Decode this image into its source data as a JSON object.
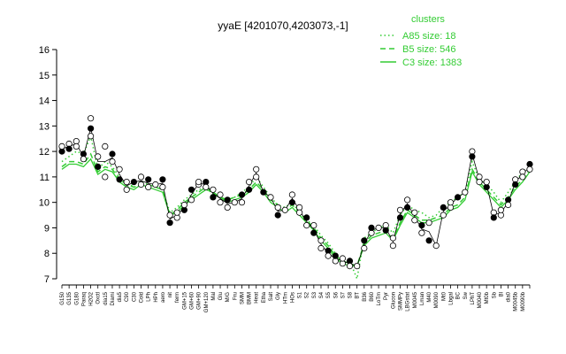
{
  "chart_data": {
    "type": "line",
    "title": "yyaE [4201070,4203073,-1]",
    "xlabel": "",
    "ylabel": "",
    "ylim": [
      7,
      16
    ],
    "yticks": [
      7,
      8,
      9,
      10,
      11,
      12,
      13,
      14,
      15,
      16
    ],
    "categories": [
      "G150",
      "G135",
      "G180",
      "Paraq",
      "H2O2",
      "Oxctl",
      "dia15",
      "Diami",
      "dia5",
      "C90",
      "C30",
      "Cold",
      "LPh",
      "HPh",
      "aero",
      "nit",
      "ferm",
      "GM+15",
      "GM+60",
      "GM+90",
      "GM+120",
      "GM+150",
      "Mal",
      "Glu",
      "M/G",
      "Fru",
      "SMM",
      "BMM",
      "Heat",
      "Etha",
      "Salt",
      "Gly",
      "HTm",
      "HOs",
      "S1",
      "S2",
      "S3",
      "S4",
      "S5",
      "S6",
      "S7",
      "S8",
      "BT",
      "B36",
      "B60",
      "LoTm",
      "Pyr",
      "Glucon",
      "SMMPy",
      "LBGstat",
      "M0045",
      "Lman",
      "M40",
      "M0090",
      "Mt0",
      "Lbgal",
      "BC",
      "Sw",
      "LPhT",
      "M0040",
      "Mt0b",
      "Sb",
      "Bl",
      "dia0",
      "M0045b",
      "M0090b"
    ],
    "visible_labels": [
      "G150",
      "G135",
      "G180",
      "Paraq",
      "H2O2",
      "Oxctl",
      "dia15",
      "Diami",
      "dia5",
      "C90",
      "C30",
      "Cold",
      "LPh",
      "HPh",
      "aero",
      "nit",
      "ferm",
      "GM+15",
      "GM+60",
      "GM+90",
      "GM+120",
      "Mal",
      "Glu",
      "M/G",
      "Fru",
      "SMM",
      "BMM",
      "Heat",
      "Etha",
      "Salt",
      "Gly",
      "HTm",
      "HOs",
      "S1",
      "S2",
      "S3",
      "S4",
      "S5",
      "S6",
      "S7",
      "S8",
      "BT",
      "B36",
      "B60",
      "LoTm",
      "Pyr",
      "Glucon",
      "SMMPy",
      "LBGstat",
      "M0045",
      "Lman",
      "M40",
      "M0090",
      "Mt0",
      "Lbgal",
      "BC",
      "Sw",
      "LPhT",
      "M0040",
      "Mt0b",
      "Sb",
      "Bl",
      "dia0",
      "M0045b",
      "M0090b"
    ],
    "series": [
      {
        "name": "A85 size: 18",
        "style": "dotted",
        "values": [
          11.6,
          11.8,
          12.0,
          11.9,
          12.6,
          11.3,
          11.6,
          11.4,
          11.0,
          10.6,
          10.7,
          10.8,
          10.7,
          10.6,
          10.5,
          9.6,
          9.8,
          10.1,
          10.3,
          10.5,
          10.6,
          10.3,
          10.2,
          10.1,
          10.2,
          10.4,
          10.6,
          11.0,
          10.6,
          10.2,
          9.9,
          9.8,
          10.0,
          9.6,
          9.3,
          9.1,
          8.7,
          8.4,
          8.0,
          7.8,
          7.7,
          7.0,
          8.6,
          8.8,
          9.0,
          9.1,
          8.8,
          9.5,
          9.9,
          9.7,
          9.6,
          9.4,
          9.5,
          9.8,
          10.0,
          10.2,
          10.4,
          11.6,
          10.9,
          10.7,
          10.4,
          10.0,
          10.4,
          10.8,
          11.2,
          11.4
        ]
      },
      {
        "name": "B5 size: 546",
        "style": "dashed",
        "values": [
          11.4,
          11.6,
          11.6,
          11.5,
          11.9,
          11.2,
          11.4,
          11.3,
          10.9,
          10.7,
          10.6,
          10.7,
          10.7,
          10.6,
          10.5,
          9.5,
          9.7,
          10.0,
          10.2,
          10.4,
          10.6,
          10.4,
          10.2,
          10.1,
          10.2,
          10.3,
          10.5,
          10.8,
          10.5,
          10.1,
          9.9,
          9.7,
          9.9,
          9.6,
          9.3,
          9.0,
          8.6,
          8.3,
          7.9,
          7.7,
          7.6,
          7.5,
          8.4,
          8.7,
          8.8,
          8.9,
          8.6,
          9.2,
          9.7,
          9.5,
          9.3,
          9.3,
          9.4,
          9.5,
          9.8,
          9.9,
          10.2,
          11.3,
          10.8,
          10.5,
          10.2,
          9.9,
          10.2,
          10.6,
          10.9,
          11.3
        ]
      },
      {
        "name": "C3 size: 1383",
        "style": "solid",
        "values": [
          11.3,
          11.5,
          11.5,
          11.4,
          11.7,
          11.1,
          11.3,
          11.2,
          10.8,
          10.6,
          10.5,
          10.7,
          10.6,
          10.5,
          10.4,
          9.5,
          9.6,
          9.9,
          10.1,
          10.3,
          10.5,
          10.4,
          10.2,
          10.0,
          10.1,
          10.2,
          10.4,
          10.7,
          10.4,
          10.0,
          9.8,
          9.6,
          9.8,
          9.5,
          9.2,
          8.9,
          8.5,
          8.2,
          7.8,
          7.6,
          7.5,
          7.5,
          8.3,
          8.6,
          8.7,
          8.8,
          8.5,
          9.1,
          9.6,
          9.4,
          9.2,
          9.2,
          9.3,
          9.4,
          9.7,
          9.8,
          10.1,
          11.2,
          10.7,
          10.4,
          10.1,
          9.8,
          10.1,
          10.5,
          10.8,
          11.2
        ]
      }
    ],
    "points": [
      {
        "x": 0,
        "y": 12.0
      },
      {
        "x": 0,
        "y": 12.2
      },
      {
        "x": 1,
        "y": 12.3
      },
      {
        "x": 1,
        "y": 12.1
      },
      {
        "x": 2,
        "y": 12.4
      },
      {
        "x": 2,
        "y": 12.2
      },
      {
        "x": 3,
        "y": 11.9
      },
      {
        "x": 3,
        "y": 11.7
      },
      {
        "x": 4,
        "y": 13.3
      },
      {
        "x": 4,
        "y": 12.9
      },
      {
        "x": 4,
        "y": 12.6
      },
      {
        "x": 5,
        "y": 11.8
      },
      {
        "x": 5,
        "y": 11.4
      },
      {
        "x": 6,
        "y": 11.0
      },
      {
        "x": 6,
        "y": 12.2
      },
      {
        "x": 7,
        "y": 11.9
      },
      {
        "x": 7,
        "y": 11.6
      },
      {
        "x": 8,
        "y": 11.3
      },
      {
        "x": 8,
        "y": 10.9
      },
      {
        "x": 9,
        "y": 10.8
      },
      {
        "x": 9,
        "y": 10.5
      },
      {
        "x": 10,
        "y": 10.8
      },
      {
        "x": 11,
        "y": 11.0
      },
      {
        "x": 11,
        "y": 10.7
      },
      {
        "x": 12,
        "y": 10.9
      },
      {
        "x": 12,
        "y": 10.6
      },
      {
        "x": 13,
        "y": 10.7
      },
      {
        "x": 14,
        "y": 10.9
      },
      {
        "x": 14,
        "y": 10.6
      },
      {
        "x": 15,
        "y": 9.5
      },
      {
        "x": 15,
        "y": 9.2
      },
      {
        "x": 16,
        "y": 9.4
      },
      {
        "x": 16,
        "y": 9.6
      },
      {
        "x": 17,
        "y": 9.7
      },
      {
        "x": 17,
        "y": 9.9
      },
      {
        "x": 18,
        "y": 10.1
      },
      {
        "x": 18,
        "y": 10.5
      },
      {
        "x": 19,
        "y": 10.7
      },
      {
        "x": 19,
        "y": 10.8
      },
      {
        "x": 20,
        "y": 10.8
      },
      {
        "x": 20,
        "y": 10.6
      },
      {
        "x": 21,
        "y": 10.5
      },
      {
        "x": 21,
        "y": 10.2
      },
      {
        "x": 22,
        "y": 10.0
      },
      {
        "x": 22,
        "y": 10.3
      },
      {
        "x": 23,
        "y": 10.1
      },
      {
        "x": 23,
        "y": 9.8
      },
      {
        "x": 24,
        "y": 10.0
      },
      {
        "x": 25,
        "y": 10.3
      },
      {
        "x": 25,
        "y": 10.0
      },
      {
        "x": 26,
        "y": 10.8
      },
      {
        "x": 26,
        "y": 10.5
      },
      {
        "x": 27,
        "y": 11.3
      },
      {
        "x": 27,
        "y": 11.0
      },
      {
        "x": 28,
        "y": 10.4
      },
      {
        "x": 29,
        "y": 10.2
      },
      {
        "x": 30,
        "y": 9.8
      },
      {
        "x": 30,
        "y": 9.5
      },
      {
        "x": 31,
        "y": 9.7
      },
      {
        "x": 32,
        "y": 10.3
      },
      {
        "x": 32,
        "y": 10.0
      },
      {
        "x": 33,
        "y": 9.8
      },
      {
        "x": 33,
        "y": 9.6
      },
      {
        "x": 34,
        "y": 9.4
      },
      {
        "x": 34,
        "y": 9.1
      },
      {
        "x": 35,
        "y": 9.1
      },
      {
        "x": 35,
        "y": 8.8
      },
      {
        "x": 36,
        "y": 8.5
      },
      {
        "x": 36,
        "y": 8.2
      },
      {
        "x": 37,
        "y": 8.1
      },
      {
        "x": 37,
        "y": 7.9
      },
      {
        "x": 38,
        "y": 7.7
      },
      {
        "x": 38,
        "y": 7.9
      },
      {
        "x": 39,
        "y": 7.6
      },
      {
        "x": 39,
        "y": 7.8
      },
      {
        "x": 40,
        "y": 7.7
      },
      {
        "x": 40,
        "y": 7.5
      },
      {
        "x": 41,
        "y": 7.5
      },
      {
        "x": 42,
        "y": 8.5
      },
      {
        "x": 42,
        "y": 8.2
      },
      {
        "x": 43,
        "y": 8.8
      },
      {
        "x": 43,
        "y": 9.0
      },
      {
        "x": 44,
        "y": 9.0
      },
      {
        "x": 45,
        "y": 9.1
      },
      {
        "x": 45,
        "y": 8.9
      },
      {
        "x": 46,
        "y": 8.6
      },
      {
        "x": 46,
        "y": 8.3
      },
      {
        "x": 47,
        "y": 9.4
      },
      {
        "x": 47,
        "y": 9.7
      },
      {
        "x": 48,
        "y": 10.1
      },
      {
        "x": 48,
        "y": 9.8
      },
      {
        "x": 49,
        "y": 9.6
      },
      {
        "x": 49,
        "y": 9.3
      },
      {
        "x": 50,
        "y": 9.1
      },
      {
        "x": 50,
        "y": 8.8
      },
      {
        "x": 51,
        "y": 9.2
      },
      {
        "x": 51,
        "y": 8.5
      },
      {
        "x": 52,
        "y": 8.3
      },
      {
        "x": 53,
        "y": 9.5
      },
      {
        "x": 53,
        "y": 9.8
      },
      {
        "x": 54,
        "y": 9.8
      },
      {
        "x": 54,
        "y": 10.0
      },
      {
        "x": 55,
        "y": 10.2
      },
      {
        "x": 56,
        "y": 10.4
      },
      {
        "x": 57,
        "y": 12.0
      },
      {
        "x": 57,
        "y": 11.8
      },
      {
        "x": 58,
        "y": 11.0
      },
      {
        "x": 58,
        "y": 10.8
      },
      {
        "x": 59,
        "y": 10.6
      },
      {
        "x": 59,
        "y": 10.8
      },
      {
        "x": 60,
        "y": 9.6
      },
      {
        "x": 60,
        "y": 9.4
      },
      {
        "x": 61,
        "y": 9.5
      },
      {
        "x": 61,
        "y": 9.7
      },
      {
        "x": 62,
        "y": 10.1
      },
      {
        "x": 62,
        "y": 9.9
      },
      {
        "x": 63,
        "y": 10.9
      },
      {
        "x": 63,
        "y": 10.7
      },
      {
        "x": 64,
        "y": 11.2
      },
      {
        "x": 64,
        "y": 11.0
      },
      {
        "x": 65,
        "y": 11.5
      },
      {
        "x": 65,
        "y": 11.3
      }
    ],
    "legend": {
      "title": "clusters",
      "placement": "top-right",
      "entries": [
        {
          "label": "A85 size: 18",
          "style": "dotted"
        },
        {
          "label": "B5 size: 546",
          "style": "dashed"
        },
        {
          "label": "C3 size: 1383",
          "style": "solid"
        }
      ]
    },
    "colors": {
      "series": "#33cc33",
      "points_fill": "#ffffff",
      "points_dark": "#000000",
      "axis": "#000000"
    },
    "grid": false
  }
}
